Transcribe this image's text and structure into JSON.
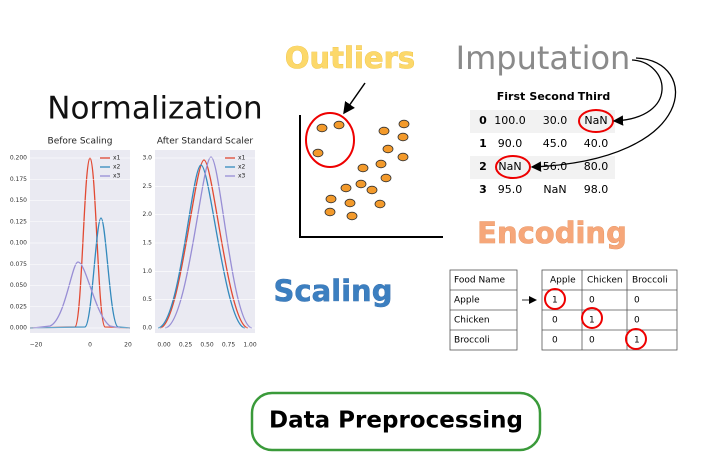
{
  "title": "Data Preprocessing",
  "normalization": {
    "label": "Normalization",
    "before": {
      "title": "Before Scaling",
      "legend": [
        "x1",
        "x2",
        "x3"
      ],
      "yticks": [
        "0.000",
        "0.025",
        "0.050",
        "0.075",
        "0.100",
        "0.125",
        "0.150",
        "0.175",
        "0.200"
      ],
      "xticks": [
        "−20",
        "0",
        "20"
      ]
    },
    "after": {
      "title": "After Standard Scaler",
      "legend": [
        "x1",
        "x2",
        "x3"
      ],
      "yticks": [
        "0.0",
        "0.5",
        "1.0",
        "1.5",
        "2.0",
        "2.5",
        "3.0"
      ],
      "xticks": [
        "0.00",
        "0.25",
        "0.50",
        "0.75",
        "1.00"
      ]
    }
  },
  "outliers": {
    "label": "Outliers"
  },
  "imputation": {
    "label": "Imputation",
    "columns": [
      "First",
      "Second",
      "Third"
    ],
    "rows": [
      [
        "0",
        "100.0",
        "30.0",
        "NaN"
      ],
      [
        "1",
        "90.0",
        "45.0",
        "40.0"
      ],
      [
        "2",
        "NaN",
        "56.0",
        "80.0"
      ],
      [
        "3",
        "95.0",
        "NaN",
        "98.0"
      ]
    ]
  },
  "encoding": {
    "label": "Encoding",
    "left_header": "Food Name",
    "left_rows": [
      "Apple",
      "Chicken",
      "Broccoli"
    ],
    "right_header": [
      "Apple",
      "Chicken",
      "Broccoli"
    ],
    "right_rows": [
      [
        "1",
        "0",
        "0"
      ],
      [
        "0",
        "1",
        "0"
      ],
      [
        "0",
        "0",
        "1"
      ]
    ]
  },
  "scaling": {
    "label": "Scaling"
  }
}
